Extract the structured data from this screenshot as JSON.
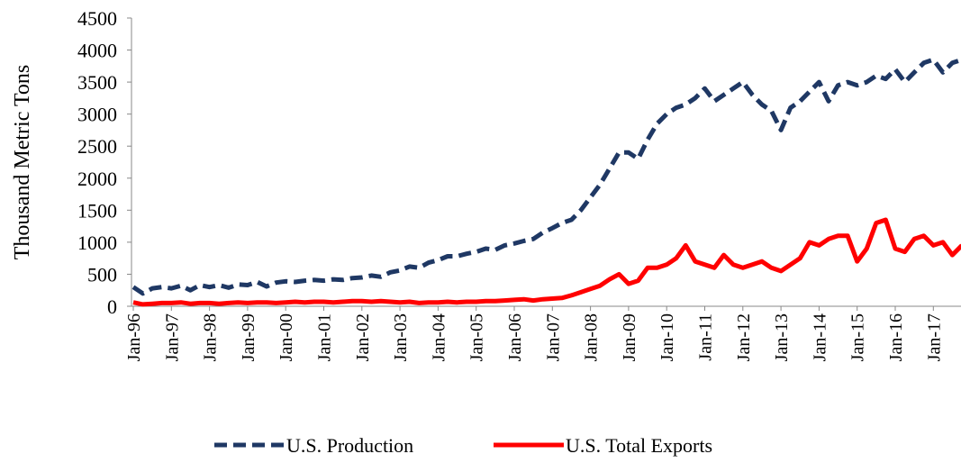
{
  "chart_data": {
    "type": "line",
    "y_label": "Thousand Metric Tons",
    "ylim": [
      0,
      4500
    ],
    "yticks": [
      0,
      500,
      1000,
      1500,
      2000,
      2500,
      3000,
      3500,
      4000,
      4500
    ],
    "categories": [
      "Jan-96",
      null,
      null,
      null,
      "Jan-97",
      null,
      null,
      null,
      "Jan-98",
      null,
      null,
      null,
      "Jan-99",
      null,
      null,
      null,
      "Jan-00",
      null,
      null,
      null,
      "Jan-01",
      null,
      null,
      null,
      "Jan-02",
      null,
      null,
      null,
      "Jan-03",
      null,
      null,
      null,
      "Jan-04",
      null,
      null,
      null,
      "Jan-05",
      null,
      null,
      null,
      "Jan-06",
      null,
      null,
      null,
      "Jan-07",
      null,
      null,
      null,
      "Jan-08",
      null,
      null,
      null,
      "Jan-09",
      null,
      null,
      null,
      "Jan-10",
      null,
      null,
      null,
      "Jan-11",
      null,
      null,
      null,
      "Jan-12",
      null,
      null,
      null,
      "Jan-13",
      null,
      null,
      null,
      "Jan-14",
      null,
      null,
      null,
      "Jan-15",
      null,
      null,
      null,
      "Jan-16",
      null,
      null,
      null,
      "Jan-17",
      null,
      null,
      null
    ],
    "series": [
      {
        "name": "U.S. Production",
        "color": "#1f3864",
        "style": "dashed",
        "values": [
          300,
          200,
          280,
          300,
          280,
          320,
          250,
          330,
          300,
          330,
          290,
          340,
          330,
          380,
          310,
          370,
          390,
          380,
          400,
          410,
          400,
          420,
          410,
          440,
          450,
          480,
          460,
          530,
          560,
          620,
          600,
          680,
          720,
          780,
          780,
          820,
          850,
          900,
          880,
          950,
          980,
          1020,
          1050,
          1150,
          1220,
          1300,
          1350,
          1500,
          1700,
          1900,
          2150,
          2400,
          2400,
          2300,
          2600,
          2850,
          3000,
          3100,
          3150,
          3250,
          3400,
          3200,
          3300,
          3400,
          3500,
          3300,
          3150,
          3050,
          2750,
          3100,
          3200,
          3350,
          3500,
          3200,
          3450,
          3500,
          3450,
          3500,
          3600,
          3550,
          3700,
          3500,
          3650,
          3800,
          3850,
          3650,
          3800,
          3850
        ]
      },
      {
        "name": "U.S. Total Exports",
        "color": "#ff0000",
        "style": "solid",
        "values": [
          60,
          30,
          40,
          50,
          50,
          60,
          40,
          50,
          50,
          40,
          50,
          60,
          50,
          60,
          60,
          50,
          60,
          70,
          60,
          70,
          70,
          60,
          70,
          80,
          80,
          70,
          80,
          70,
          60,
          70,
          50,
          60,
          60,
          70,
          60,
          70,
          70,
          80,
          80,
          90,
          100,
          110,
          90,
          110,
          120,
          130,
          170,
          220,
          270,
          320,
          420,
          500,
          350,
          400,
          600,
          600,
          650,
          750,
          950,
          700,
          650,
          600,
          800,
          650,
          600,
          650,
          700,
          600,
          550,
          650,
          750,
          1000,
          950,
          1050,
          1100,
          1100,
          700,
          900,
          1300,
          1350,
          900,
          850,
          1050,
          1100,
          950,
          1000,
          800,
          950
        ]
      }
    ]
  }
}
